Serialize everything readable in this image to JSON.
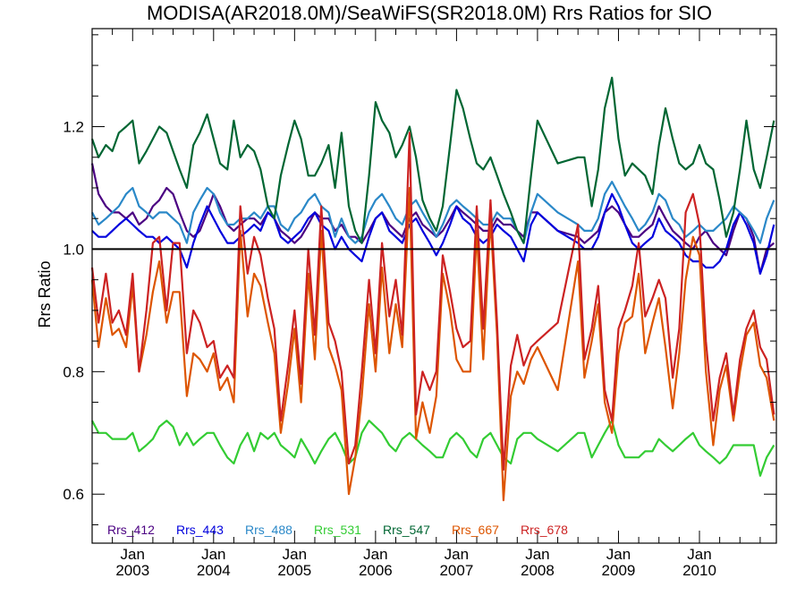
{
  "chart_data": {
    "type": "line",
    "title": "MODISA(AR2018.0M)/SeaWiFS(SR2018.0M)  Rrs Ratios for SIO",
    "xlabel": "",
    "ylabel": "Rrs Ratio",
    "ylim": [
      0.52,
      1.36
    ],
    "yticks": [
      0.6,
      0.8,
      1.0,
      1.2
    ],
    "ytick_labels": [
      "0.6",
      "0.8",
      "1.0",
      "1.2"
    ],
    "xlim": [
      2002.5,
      2010.95
    ],
    "xticks": [
      {
        "pos": 2003.0,
        "month": "Jan",
        "year": "2003"
      },
      {
        "pos": 2004.0,
        "month": "Jan",
        "year": "2004"
      },
      {
        "pos": 2005.0,
        "month": "Jan",
        "year": "2005"
      },
      {
        "pos": 2006.0,
        "month": "Jan",
        "year": "2006"
      },
      {
        "pos": 2007.0,
        "month": "Jan",
        "year": "2007"
      },
      {
        "pos": 2008.0,
        "month": "Jan",
        "year": "2008"
      },
      {
        "pos": 2009.0,
        "month": "Jan",
        "year": "2009"
      },
      {
        "pos": 2010.0,
        "month": "Jan",
        "year": "2010"
      }
    ],
    "reference_line": 1.0,
    "grid": false,
    "legend_position": "bottom",
    "x": [
      2002.5,
      2002.58,
      2002.67,
      2002.75,
      2002.83,
      2002.92,
      2003.0,
      2003.08,
      2003.17,
      2003.25,
      2003.33,
      2003.42,
      2003.5,
      2003.58,
      2003.67,
      2003.75,
      2003.83,
      2003.92,
      2004.0,
      2004.08,
      2004.17,
      2004.25,
      2004.33,
      2004.42,
      2004.5,
      2004.58,
      2004.67,
      2004.75,
      2004.83,
      2004.92,
      2005.0,
      2005.08,
      2005.17,
      2005.25,
      2005.33,
      2005.42,
      2005.5,
      2005.58,
      2005.67,
      2005.75,
      2005.83,
      2005.92,
      2006.0,
      2006.08,
      2006.17,
      2006.25,
      2006.33,
      2006.42,
      2006.5,
      2006.58,
      2006.67,
      2006.75,
      2006.83,
      2006.92,
      2007.0,
      2007.08,
      2007.17,
      2007.25,
      2007.33,
      2007.42,
      2007.5,
      2007.58,
      2007.67,
      2007.75,
      2007.83,
      2007.92,
      2008.0,
      2008.25,
      2008.5,
      2008.58,
      2008.67,
      2008.75,
      2008.83,
      2008.92,
      2009.0,
      2009.08,
      2009.17,
      2009.25,
      2009.33,
      2009.42,
      2009.5,
      2009.58,
      2009.67,
      2009.75,
      2009.83,
      2009.92,
      2010.0,
      2010.08,
      2010.17,
      2010.25,
      2010.33,
      2010.42,
      2010.5,
      2010.58,
      2010.67,
      2010.75,
      2010.83,
      2010.92
    ],
    "series": [
      {
        "name": "Rrs_412",
        "color": "#4b0082",
        "values": [
          1.14,
          1.09,
          1.07,
          1.06,
          1.06,
          1.05,
          1.06,
          1.04,
          1.05,
          1.07,
          1.08,
          1.1,
          1.09,
          1.06,
          1.03,
          1.02,
          1.03,
          1.06,
          1.09,
          1.07,
          1.04,
          1.03,
          1.04,
          1.05,
          1.05,
          1.04,
          1.06,
          1.05,
          1.03,
          1.02,
          1.01,
          1.02,
          1.04,
          1.06,
          1.05,
          1.05,
          1.03,
          1.04,
          1.02,
          1.02,
          1.01,
          1.03,
          1.05,
          1.06,
          1.04,
          1.03,
          1.02,
          1.05,
          1.06,
          1.04,
          1.03,
          1.02,
          1.03,
          1.05,
          1.07,
          1.06,
          1.05,
          1.04,
          1.03,
          1.03,
          1.05,
          1.04,
          1.04,
          1.03,
          1.02,
          1.06,
          1.06,
          1.03,
          1.02,
          1.01,
          1.02,
          1.03,
          1.06,
          1.07,
          1.06,
          1.04,
          1.02,
          1.02,
          1.03,
          1.04,
          1.07,
          1.05,
          1.03,
          1.02,
          1.01,
          1.0,
          1.02,
          1.03,
          1.01,
          1.0,
          0.99,
          1.03,
          1.06,
          1.05,
          1.02,
          0.96,
          1.0,
          1.01
        ]
      },
      {
        "name": "Rrs_443",
        "color": "#0000dd",
        "values": [
          1.03,
          1.02,
          1.02,
          1.03,
          1.04,
          1.05,
          1.04,
          1.03,
          1.02,
          1.02,
          1.01,
          1.02,
          1.01,
          1.0,
          0.97,
          1.01,
          1.04,
          1.07,
          1.05,
          1.03,
          1.01,
          1.01,
          1.02,
          1.03,
          1.04,
          1.03,
          1.06,
          1.05,
          1.02,
          1.01,
          1.02,
          1.03,
          1.05,
          1.06,
          1.04,
          1.03,
          1.0,
          1.02,
          1.0,
          0.99,
          0.98,
          1.02,
          1.05,
          1.06,
          1.03,
          1.02,
          1.01,
          1.04,
          1.05,
          1.03,
          1.01,
          0.99,
          1.01,
          1.04,
          1.07,
          1.05,
          1.04,
          1.02,
          1.01,
          1.02,
          1.04,
          1.03,
          1.02,
          1.0,
          0.98,
          1.04,
          1.06,
          1.03,
          1.01,
          1.0,
          1.0,
          1.02,
          1.06,
          1.09,
          1.07,
          1.04,
          1.01,
          1.0,
          1.01,
          1.02,
          1.05,
          1.03,
          1.02,
          1.01,
          0.99,
          0.98,
          0.98,
          0.97,
          0.97,
          0.98,
          1.0,
          1.04,
          1.06,
          1.04,
          1.01,
          0.96,
          0.99,
          1.04
        ]
      },
      {
        "name": "Rrs_488",
        "color": "#2a88c8",
        "values": [
          1.06,
          1.04,
          1.05,
          1.06,
          1.07,
          1.09,
          1.1,
          1.07,
          1.06,
          1.05,
          1.06,
          1.06,
          1.05,
          1.04,
          1.01,
          1.06,
          1.08,
          1.1,
          1.09,
          1.06,
          1.04,
          1.04,
          1.05,
          1.05,
          1.06,
          1.05,
          1.07,
          1.07,
          1.04,
          1.03,
          1.05,
          1.06,
          1.08,
          1.09,
          1.07,
          1.06,
          1.02,
          1.05,
          1.02,
          1.01,
          1.02,
          1.06,
          1.08,
          1.09,
          1.07,
          1.05,
          1.04,
          1.07,
          1.08,
          1.06,
          1.04,
          1.02,
          1.04,
          1.07,
          1.08,
          1.07,
          1.06,
          1.05,
          1.04,
          1.04,
          1.06,
          1.05,
          1.05,
          1.03,
          1.01,
          1.06,
          1.09,
          1.06,
          1.04,
          1.03,
          1.03,
          1.05,
          1.09,
          1.11,
          1.09,
          1.07,
          1.05,
          1.03,
          1.04,
          1.06,
          1.09,
          1.08,
          1.05,
          1.04,
          1.02,
          1.03,
          1.04,
          1.03,
          1.03,
          1.04,
          1.05,
          1.07,
          1.06,
          1.05,
          1.03,
          1.01,
          1.05,
          1.08
        ]
      },
      {
        "name": "Rrs_531",
        "color": "#33cc33",
        "values": [
          0.72,
          0.7,
          0.7,
          0.69,
          0.69,
          0.69,
          0.7,
          0.67,
          0.68,
          0.69,
          0.71,
          0.72,
          0.71,
          0.68,
          0.7,
          0.68,
          0.69,
          0.7,
          0.7,
          0.68,
          0.66,
          0.65,
          0.68,
          0.7,
          0.67,
          0.7,
          0.69,
          0.7,
          0.68,
          0.67,
          0.66,
          0.69,
          0.67,
          0.65,
          0.67,
          0.69,
          0.7,
          0.68,
          0.65,
          0.66,
          0.7,
          0.72,
          0.71,
          0.7,
          0.68,
          0.67,
          0.69,
          0.7,
          0.69,
          0.68,
          0.67,
          0.66,
          0.66,
          0.69,
          0.7,
          0.69,
          0.67,
          0.66,
          0.69,
          0.7,
          0.68,
          0.66,
          0.65,
          0.69,
          0.7,
          0.7,
          0.69,
          0.67,
          0.7,
          0.7,
          0.66,
          0.68,
          0.7,
          0.72,
          0.68,
          0.66,
          0.66,
          0.66,
          0.67,
          0.67,
          0.69,
          0.68,
          0.67,
          0.68,
          0.69,
          0.7,
          0.68,
          0.67,
          0.66,
          0.65,
          0.66,
          0.68,
          0.68,
          0.68,
          0.68,
          0.63,
          0.66,
          0.68
        ]
      },
      {
        "name": "Rrs_547",
        "color": "#006633",
        "values": [
          1.18,
          1.15,
          1.17,
          1.16,
          1.19,
          1.2,
          1.21,
          1.14,
          1.16,
          1.18,
          1.2,
          1.19,
          1.16,
          1.13,
          1.1,
          1.17,
          1.19,
          1.22,
          1.18,
          1.14,
          1.13,
          1.21,
          1.15,
          1.17,
          1.16,
          1.13,
          1.07,
          1.05,
          1.12,
          1.17,
          1.21,
          1.18,
          1.12,
          1.12,
          1.14,
          1.17,
          1.1,
          1.19,
          1.07,
          1.03,
          1.01,
          1.12,
          1.24,
          1.21,
          1.19,
          1.15,
          1.17,
          1.2,
          1.15,
          1.08,
          1.05,
          1.03,
          1.07,
          1.17,
          1.26,
          1.23,
          1.18,
          1.14,
          1.13,
          1.15,
          1.12,
          1.09,
          1.06,
          1.03,
          1.01,
          1.12,
          1.21,
          1.14,
          1.15,
          1.15,
          1.07,
          1.13,
          1.23,
          1.28,
          1.18,
          1.12,
          1.14,
          1.13,
          1.12,
          1.09,
          1.17,
          1.23,
          1.18,
          1.14,
          1.13,
          1.14,
          1.17,
          1.14,
          1.13,
          1.08,
          1.02,
          1.06,
          1.13,
          1.21,
          1.13,
          1.1,
          1.15,
          1.21
        ]
      },
      {
        "name": "Rrs_667",
        "color": "#dd5500",
        "values": [
          0.95,
          0.84,
          0.92,
          0.86,
          0.87,
          0.84,
          0.94,
          0.8,
          0.86,
          0.93,
          0.98,
          0.88,
          0.93,
          0.93,
          0.76,
          0.83,
          0.82,
          0.8,
          0.83,
          0.77,
          0.79,
          0.75,
          1.03,
          0.89,
          0.96,
          0.94,
          0.88,
          0.83,
          0.7,
          0.78,
          0.87,
          0.75,
          0.96,
          0.82,
          1.03,
          0.84,
          0.81,
          0.77,
          0.6,
          0.66,
          0.76,
          0.91,
          0.8,
          0.97,
          0.83,
          0.91,
          0.84,
          1.1,
          0.69,
          0.75,
          0.7,
          0.76,
          0.96,
          0.9,
          0.82,
          0.8,
          0.8,
          1.03,
          0.82,
          1.05,
          0.86,
          0.59,
          0.76,
          0.8,
          0.78,
          0.82,
          0.84,
          0.77,
          0.98,
          0.79,
          0.85,
          0.91,
          0.75,
          0.7,
          0.83,
          0.88,
          0.89,
          0.96,
          0.83,
          0.88,
          0.92,
          0.84,
          0.74,
          0.83,
          0.95,
          1.02,
          0.99,
          0.8,
          0.68,
          0.77,
          0.81,
          0.72,
          0.8,
          0.86,
          0.88,
          0.81,
          0.79,
          0.72
        ]
      },
      {
        "name": "Rrs_678",
        "color": "#cc2222",
        "values": [
          0.97,
          0.88,
          0.96,
          0.88,
          0.9,
          0.86,
          0.96,
          0.8,
          0.9,
          1.01,
          1.02,
          0.9,
          1.01,
          1.01,
          0.83,
          0.9,
          0.88,
          0.84,
          0.85,
          0.79,
          0.81,
          0.79,
          1.07,
          0.96,
          1.02,
          0.99,
          0.92,
          0.87,
          0.72,
          0.81,
          0.9,
          0.78,
          1.0,
          0.86,
          1.07,
          0.88,
          0.85,
          0.8,
          0.65,
          0.68,
          0.8,
          0.95,
          0.83,
          1.01,
          0.89,
          0.95,
          0.86,
          1.19,
          0.73,
          0.8,
          0.77,
          0.8,
          0.99,
          0.93,
          0.87,
          0.84,
          0.85,
          1.07,
          0.87,
          1.08,
          0.88,
          0.64,
          0.81,
          0.86,
          0.81,
          0.84,
          0.85,
          0.88,
          1.04,
          0.82,
          0.87,
          0.94,
          0.77,
          0.72,
          0.87,
          0.9,
          0.94,
          1.01,
          0.89,
          0.92,
          0.95,
          0.92,
          0.79,
          0.87,
          1.06,
          1.09,
          1.04,
          0.85,
          0.72,
          0.79,
          0.83,
          0.73,
          0.82,
          0.87,
          0.9,
          0.84,
          0.82,
          0.73
        ]
      }
    ]
  }
}
